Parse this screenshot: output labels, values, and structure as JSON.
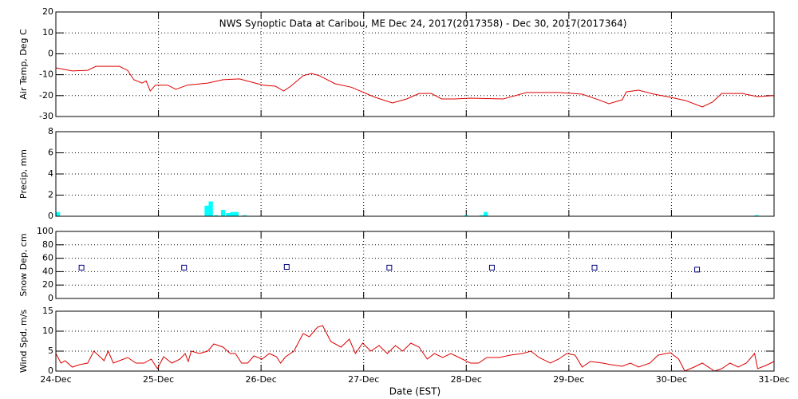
{
  "chart_data": [
    {
      "type": "line",
      "title": "NWS Synoptic Data at Caribou, ME   Dec 24, 2017(2017358) - Dec 30, 2017(2017364)",
      "ylabel": "Air Temp, Deg C",
      "color": "#dd0000",
      "grid": true,
      "xlim": [
        0,
        7
      ],
      "ylim": [
        -30,
        20
      ],
      "yticks": [
        -30,
        -20,
        -10,
        0,
        10,
        20
      ],
      "x": [
        0,
        0.16,
        0.31,
        0.39,
        0.62,
        0.7,
        0.76,
        0.84,
        0.88,
        0.92,
        0.97,
        1.09,
        1.17,
        1.28,
        1.48,
        1.63,
        1.79,
        2.02,
        2.14,
        2.22,
        2.29,
        2.41,
        2.49,
        2.57,
        2.72,
        2.88,
        3.11,
        3.28,
        3.42,
        3.54,
        3.66,
        3.76,
        3.89,
        4.04,
        4.36,
        4.59,
        4.9,
        5.13,
        5.29,
        5.39,
        5.52,
        5.56,
        5.68,
        5.83,
        5.99,
        6.14,
        6.3,
        6.4,
        6.49,
        6.69,
        6.84,
        7
      ],
      "values": [
        -6.7,
        -8.2,
        -7.9,
        -6,
        -6,
        -8,
        -12.4,
        -14,
        -13,
        -17.8,
        -15,
        -15,
        -17,
        -15,
        -14,
        -12.4,
        -12,
        -15,
        -15.5,
        -17.8,
        -15.5,
        -10.5,
        -9.4,
        -10.5,
        -14.3,
        -16,
        -20.8,
        -23.5,
        -21.6,
        -19,
        -19,
        -21.6,
        -21.6,
        -21.2,
        -21.6,
        -18.5,
        -18.5,
        -19.3,
        -22,
        -23.9,
        -22,
        -18.2,
        -17.4,
        -19.3,
        -20.8,
        -22.4,
        -25.4,
        -23.1,
        -19,
        -19,
        -20.5,
        -20
      ]
    },
    {
      "type": "bar",
      "ylabel": "Precip, mm",
      "color": "#00ffff",
      "grid": true,
      "xlim": [
        0,
        7
      ],
      "ylim": [
        0,
        8
      ],
      "yticks": [
        0,
        2,
        4,
        6,
        8
      ],
      "x": [
        0.02,
        1.47,
        1.51,
        1.56,
        1.63,
        1.68,
        1.72,
        1.76,
        1.84,
        4.0,
        4.15,
        4.19,
        6.83
      ],
      "values": [
        0.4,
        1.0,
        1.4,
        0.1,
        0.6,
        0.3,
        0.4,
        0.4,
        0.1,
        0.1,
        0.1,
        0.4,
        0.1
      ]
    },
    {
      "type": "scatter",
      "ylabel": "Snow Dep, cm",
      "color": "#000080",
      "grid": true,
      "xlim": [
        0,
        7
      ],
      "ylim": [
        0,
        100
      ],
      "yticks": [
        0,
        20,
        40,
        60,
        80,
        100
      ],
      "x": [
        0.25,
        1.25,
        2.25,
        3.25,
        4.25,
        5.25,
        6.25
      ],
      "values": [
        46,
        46,
        47,
        46,
        46,
        46,
        43
      ]
    },
    {
      "type": "line",
      "ylabel": "Wind Spd, m/s",
      "xlabel": "Date (EST)",
      "color": "#dd0000",
      "grid": true,
      "xlim": [
        0,
        7
      ],
      "ylim": [
        0,
        15
      ],
      "yticks": [
        0,
        5,
        10,
        15
      ],
      "xticks": [
        {
          "value": 0,
          "label": "24-Dec"
        },
        {
          "value": 1,
          "label": "25-Dec"
        },
        {
          "value": 2,
          "label": "26-Dec"
        },
        {
          "value": 3,
          "label": "27-Dec"
        },
        {
          "value": 4,
          "label": "28-Dec"
        },
        {
          "value": 5,
          "label": "29-Dec"
        },
        {
          "value": 6,
          "label": "30-Dec"
        },
        {
          "value": 7,
          "label": "31-Dec"
        }
      ],
      "x": [
        0,
        0.05,
        0.09,
        0.16,
        0.23,
        0.31,
        0.37,
        0.43,
        0.47,
        0.51,
        0.56,
        0.62,
        0.7,
        0.78,
        0.86,
        0.93,
        0.99,
        1.05,
        1.13,
        1.21,
        1.26,
        1.29,
        1.32,
        1.4,
        1.48,
        1.54,
        1.63,
        1.7,
        1.75,
        1.81,
        1.87,
        1.93,
        2.01,
        2.08,
        2.15,
        2.19,
        2.24,
        2.32,
        2.41,
        2.47,
        2.55,
        2.6,
        2.68,
        2.78,
        2.86,
        2.92,
        2.99,
        3.07,
        3.15,
        3.23,
        3.31,
        3.38,
        3.46,
        3.54,
        3.62,
        3.69,
        3.77,
        3.85,
        3.93,
        4.04,
        4.12,
        4.2,
        4.32,
        4.43,
        4.55,
        4.63,
        4.71,
        4.82,
        4.9,
        4.98,
        5.06,
        5.13,
        5.21,
        5.33,
        5.41,
        5.52,
        5.6,
        5.68,
        5.79,
        5.87,
        5.99,
        6.07,
        6.13,
        6.22,
        6.3,
        6.42,
        6.49,
        6.57,
        6.65,
        6.73,
        6.81,
        6.84,
        6.92,
        7.0
      ],
      "values": [
        4.4,
        2,
        2.6,
        1,
        1.6,
        2,
        5,
        3.6,
        2.6,
        5,
        2,
        2.6,
        3.4,
        2,
        2,
        3,
        0.6,
        3.6,
        2,
        3,
        4.4,
        2.4,
        5,
        4.4,
        5,
        6.8,
        6,
        4.4,
        4.4,
        2,
        2,
        3.8,
        3,
        4.4,
        3.6,
        2,
        3.6,
        5,
        9.4,
        8.6,
        11,
        11.4,
        7.4,
        6,
        8,
        4.4,
        7,
        5,
        6.4,
        4.4,
        6.4,
        5,
        7,
        6,
        3,
        4.4,
        3.4,
        4.4,
        3.4,
        2,
        2,
        3.4,
        3.4,
        4,
        4.4,
        5,
        3.4,
        2,
        3,
        4.4,
        4,
        1,
        2.4,
        2,
        1.6,
        1.2,
        2,
        1,
        2,
        4,
        4.6,
        3,
        0,
        1,
        2,
        0,
        0.6,
        2,
        1,
        2,
        4.4,
        0.6,
        1.4,
        2.4
      ]
    }
  ]
}
